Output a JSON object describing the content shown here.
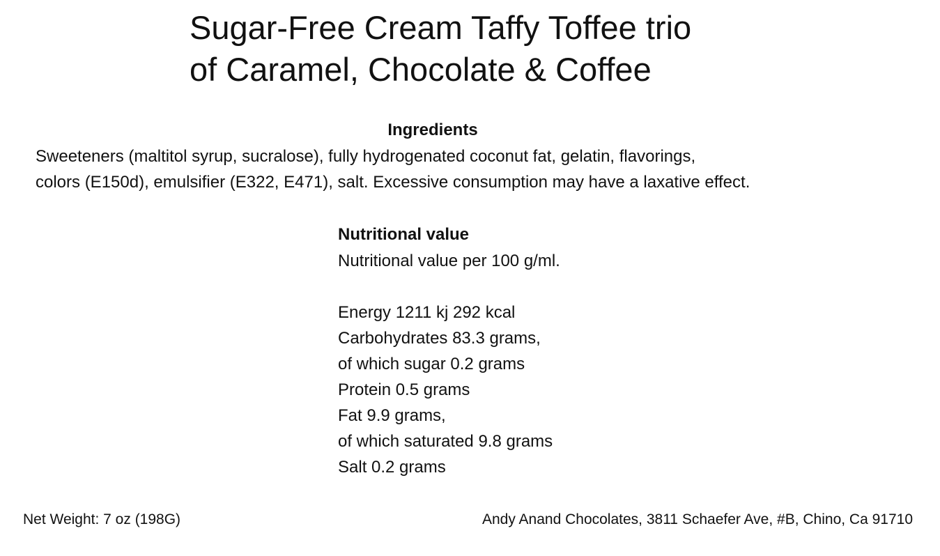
{
  "title": {
    "line1": "Sugar-Free Cream Taffy Toffee trio",
    "line2": "of Caramel, Chocolate & Coffee"
  },
  "ingredients": {
    "heading": "Ingredients",
    "lines": [
      "Sweeteners (maltitol syrup,  sucralose), fully hydrogenated coconut fat, gelatin, flavorings,",
      "colors (E150d), emulsifier (E322, E471), salt. Excessive consumption may have a laxative effect."
    ]
  },
  "nutrition": {
    "heading": "Nutritional value",
    "intro": "Nutritional value per 100 g/ml.",
    "lines": [
      "Energy 1211 kj 292 kcal",
      "Carbohydrates 83.3 grams,",
      "of which sugar 0.2 grams",
      "Protein 0.5 grams",
      "Fat 9.9 grams,",
      "of which saturated 9.8 grams",
      "Salt 0.2 grams"
    ]
  },
  "footer": {
    "net_weight": "Net Weight: 7 oz (198G)",
    "address": "Andy Anand Chocolates, 3811 Schaefer Ave, #B, Chino, Ca 91710"
  }
}
